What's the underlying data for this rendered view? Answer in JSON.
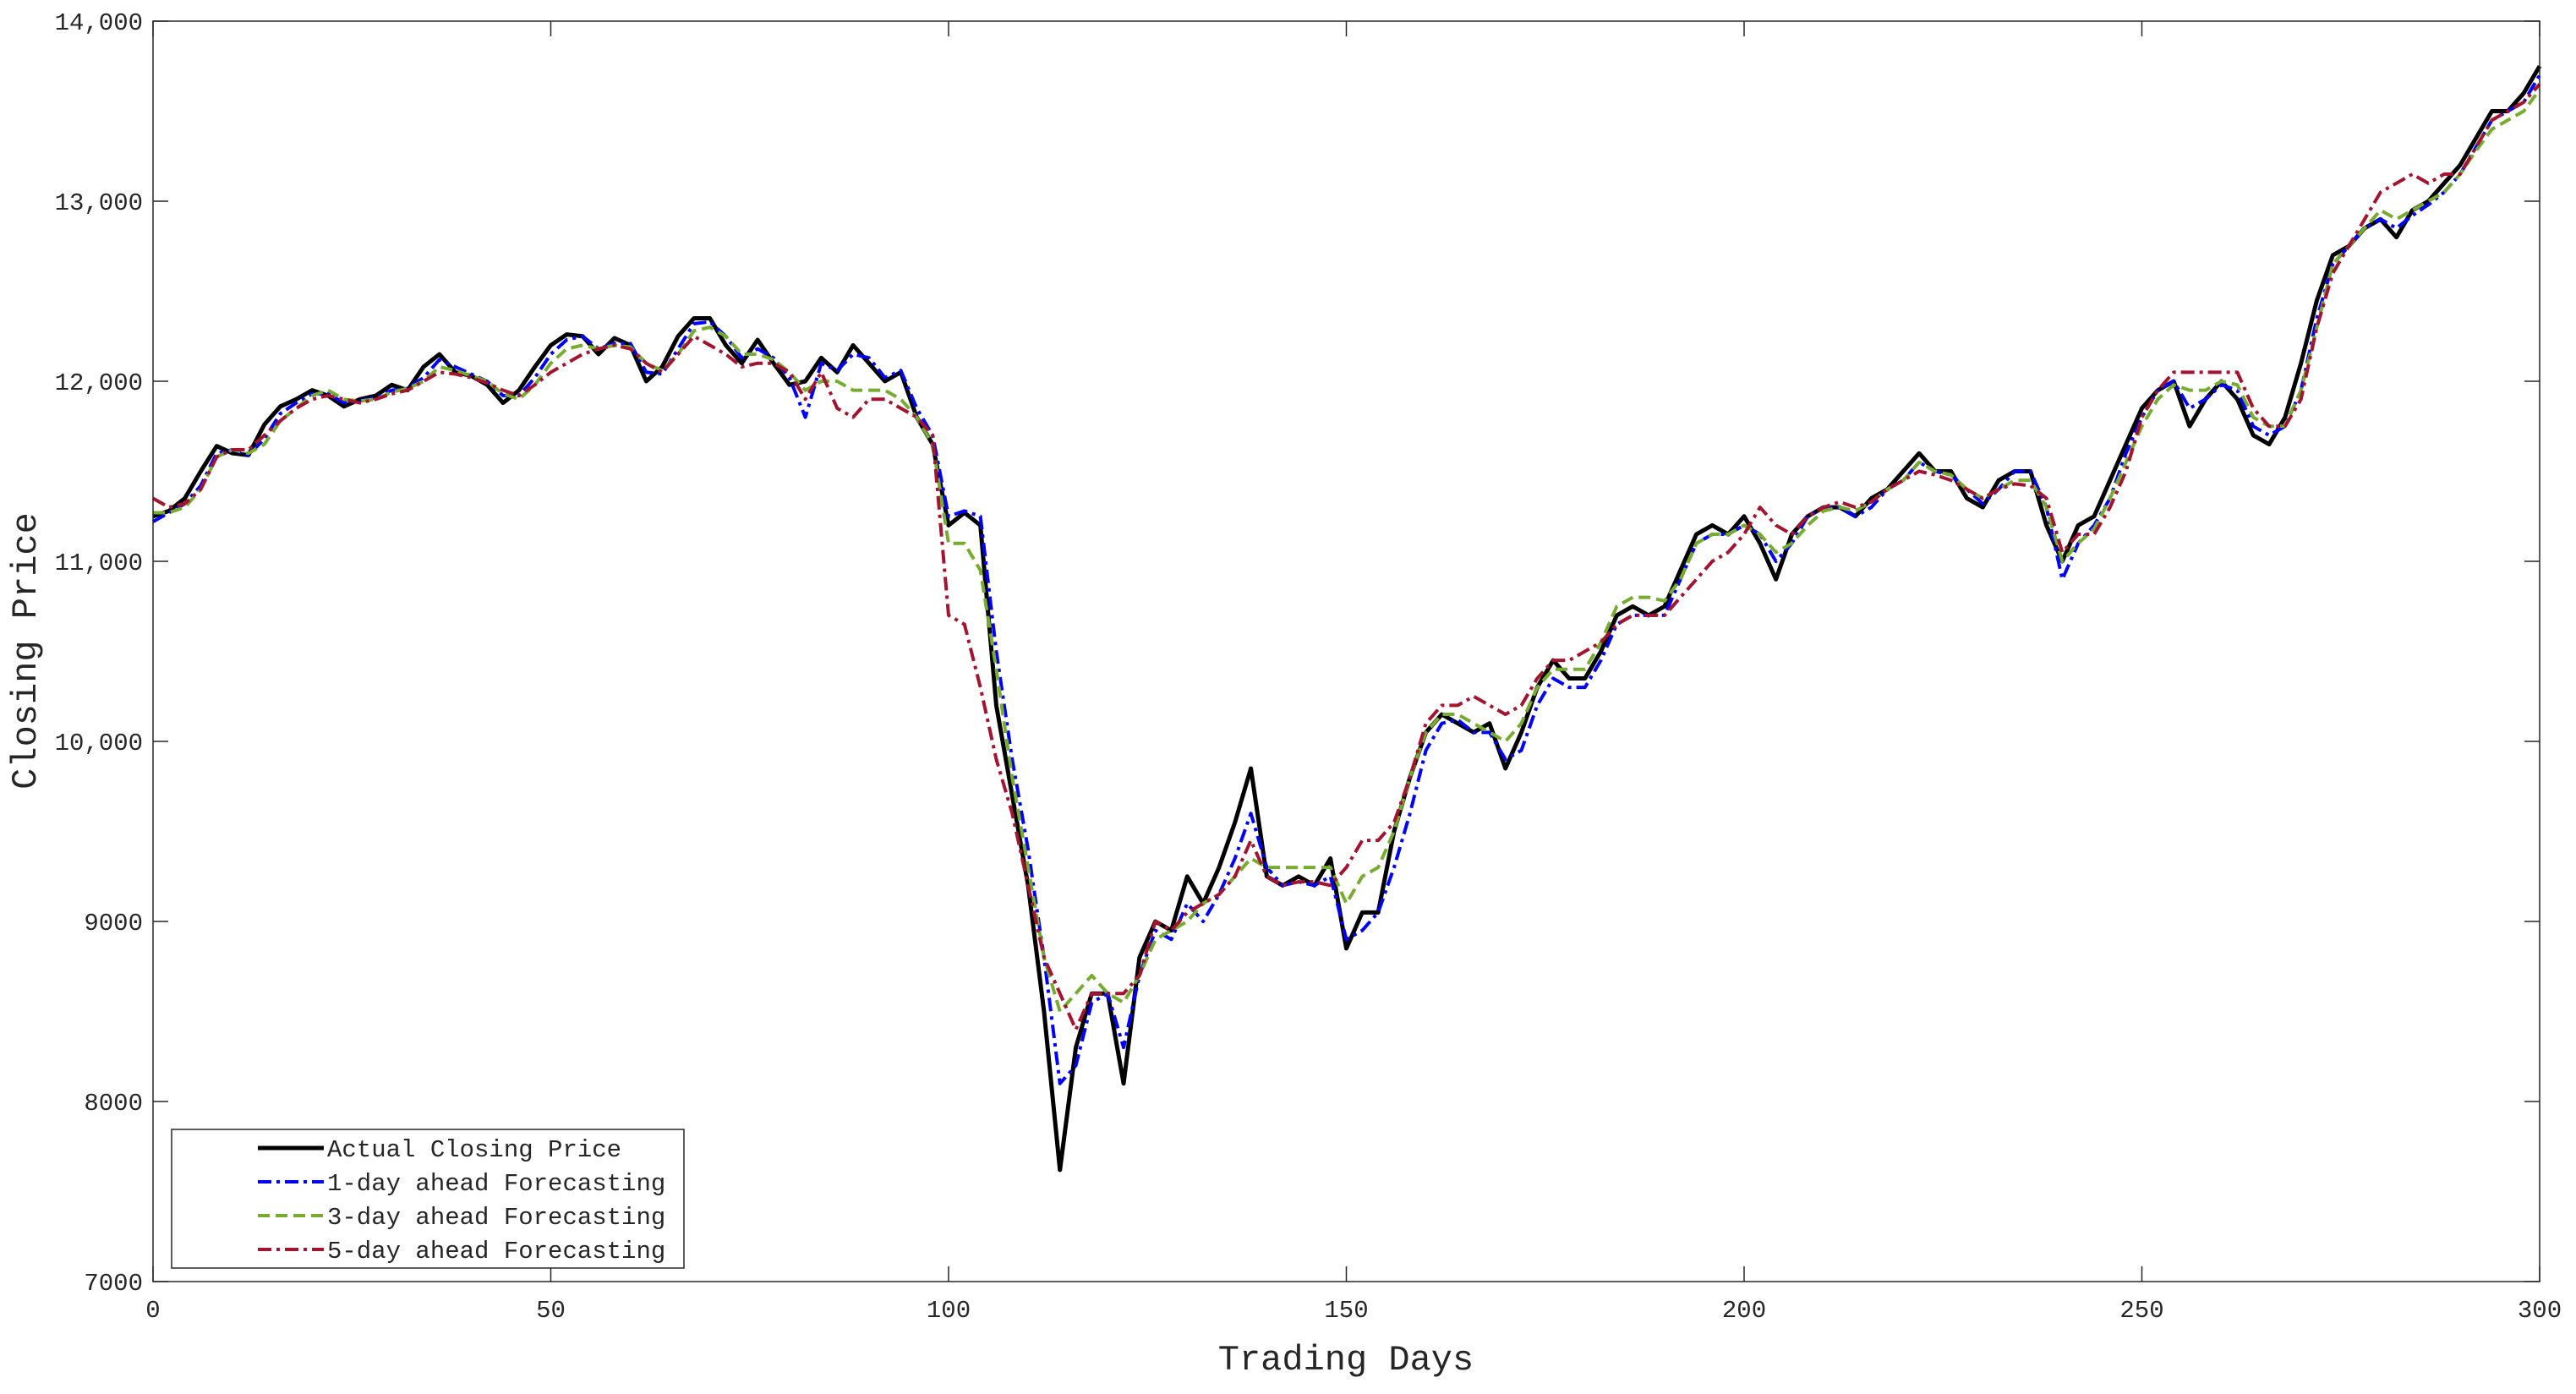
{
  "chart_data": {
    "type": "line",
    "xlabel": "Trading Days",
    "ylabel": "Closing Price",
    "xlim": [
      0,
      300
    ],
    "ylim": [
      7000,
      14000
    ],
    "xticks": [
      0,
      50,
      100,
      150,
      200,
      250,
      300
    ],
    "yticks": [
      7000,
      8000,
      9000,
      {
        "value": 10000,
        "label": "10,000"
      },
      {
        "value": 11000,
        "label": "11,000"
      },
      {
        "value": 12000,
        "label": "12,000"
      },
      {
        "value": 13000,
        "label": "13,000"
      },
      {
        "value": 14000,
        "label": "14,000"
      }
    ],
    "grid": false,
    "legend": "lower left",
    "x": [
      0,
      2,
      4,
      6,
      8,
      10,
      12,
      14,
      16,
      18,
      20,
      22,
      24,
      26,
      28,
      30,
      32,
      34,
      36,
      38,
      40,
      42,
      44,
      46,
      48,
      50,
      52,
      54,
      56,
      58,
      60,
      62,
      64,
      66,
      68,
      70,
      72,
      74,
      76,
      78,
      80,
      82,
      84,
      86,
      88,
      90,
      92,
      94,
      96,
      98,
      100,
      102,
      104,
      106,
      108,
      110,
      112,
      114,
      116,
      118,
      120,
      122,
      124,
      126,
      128,
      130,
      132,
      134,
      136,
      138,
      140,
      142,
      144,
      146,
      148,
      150,
      152,
      154,
      156,
      158,
      160,
      162,
      164,
      166,
      168,
      170,
      172,
      174,
      176,
      178,
      180,
      182,
      184,
      186,
      188,
      190,
      192,
      194,
      196,
      198,
      200,
      202,
      204,
      206,
      208,
      210,
      212,
      214,
      216,
      218,
      220,
      222,
      224,
      226,
      228,
      230,
      232,
      234,
      236,
      238,
      240,
      242,
      244,
      246,
      248,
      250,
      252,
      254,
      256,
      258,
      260,
      262,
      264,
      266,
      268,
      270,
      272,
      274,
      276,
      278,
      280,
      282,
      284,
      286,
      288,
      290,
      292,
      294,
      296,
      298,
      300
    ],
    "series": [
      {
        "name": "Actual Closing Price",
        "color": "#000000",
        "style": "solid",
        "values": [
          11250,
          11280,
          11350,
          11500,
          11640,
          11600,
          11590,
          11760,
          11860,
          11900,
          11950,
          11920,
          11860,
          11900,
          11920,
          11980,
          11950,
          12080,
          12150,
          12050,
          12030,
          11980,
          11880,
          11950,
          12080,
          12200,
          12260,
          12250,
          12150,
          12240,
          12200,
          12000,
          12080,
          12250,
          12350,
          12350,
          12200,
          12100,
          12230,
          12100,
          11980,
          12000,
          12130,
          12050,
          12200,
          12100,
          12000,
          12050,
          11800,
          11650,
          11200,
          11270,
          11200,
          10200,
          9700,
          9200,
          8500,
          7620,
          8300,
          8600,
          8600,
          8100,
          8800,
          9000,
          8950,
          9250,
          9100,
          9300,
          9550,
          9850,
          9250,
          9200,
          9250,
          9200,
          9350,
          8850,
          9050,
          9050,
          9500,
          9800,
          10050,
          10150,
          10100,
          10050,
          10100,
          9850,
          10050,
          10300,
          10450,
          10350,
          10350,
          10500,
          10700,
          10750,
          10700,
          10750,
          10950,
          11150,
          11200,
          11150,
          11250,
          11100,
          10900,
          11150,
          11250,
          11300,
          11300,
          11250,
          11350,
          11400,
          11500,
          11600,
          11500,
          11500,
          11350,
          11300,
          11450,
          11500,
          11500,
          11200,
          11000,
          11200,
          11250,
          11450,
          11650,
          11850,
          11950,
          12000,
          11750,
          11900,
          12000,
          11900,
          11700,
          11650,
          11800,
          12100,
          12450,
          12700,
          12750,
          12850,
          12900,
          12800,
          12950,
          13000,
          13100,
          13200,
          13350,
          13500,
          13500,
          13600,
          13750
        ]
      },
      {
        "name": "1-day ahead Forecasting",
        "color": "#0000ff",
        "style": "dashdot",
        "values": [
          11220,
          11270,
          11320,
          11420,
          11600,
          11620,
          11590,
          11680,
          11820,
          11880,
          11930,
          11930,
          11880,
          11890,
          11910,
          11950,
          11960,
          12020,
          12120,
          12080,
          12040,
          12000,
          11920,
          11920,
          12020,
          12150,
          12230,
          12250,
          12180,
          12210,
          12210,
          12050,
          12040,
          12180,
          12320,
          12330,
          12250,
          12130,
          12180,
          12130,
          12020,
          11800,
          12100,
          12060,
          12150,
          12130,
          12020,
          12060,
          11850,
          11700,
          11250,
          11280,
          11250,
          10500,
          9900,
          9400,
          8800,
          8100,
          8200,
          8550,
          8600,
          8300,
          8700,
          8950,
          8900,
          9100,
          9000,
          9150,
          9350,
          9600,
          9300,
          9200,
          9220,
          9200,
          9250,
          8900,
          8950,
          9050,
          9300,
          9600,
          9950,
          10100,
          10120,
          10050,
          10050,
          9900,
          9950,
          10200,
          10350,
          10300,
          10300,
          10450,
          10650,
          10700,
          10700,
          10700,
          10900,
          11100,
          11150,
          11150,
          11200,
          11150,
          11000,
          11100,
          11250,
          11300,
          11300,
          11250,
          11300,
          11400,
          11450,
          11550,
          11500,
          11480,
          11400,
          11320,
          11400,
          11500,
          11500,
          11300,
          10900,
          11100,
          11200,
          11350,
          11600,
          11800,
          11950,
          12000,
          11850,
          11900,
          11980,
          11950,
          11750,
          11700,
          11750,
          11950,
          12350,
          12650,
          12750,
          12850,
          12900,
          12850,
          12920,
          12980,
          13050,
          13150,
          13300,
          13450,
          13500,
          13550,
          13700
        ]
      },
      {
        "name": "3-day ahead Forecasting",
        "color": "#77ac30",
        "style": "dashed",
        "values": [
          11270,
          11270,
          11300,
          11400,
          11580,
          11620,
          11600,
          11650,
          11780,
          11850,
          11920,
          11950,
          11900,
          11890,
          11900,
          11940,
          11960,
          12000,
          12080,
          12060,
          12030,
          12000,
          11930,
          11900,
          11980,
          12100,
          12180,
          12200,
          12180,
          12200,
          12190,
          12100,
          12060,
          12150,
          12280,
          12300,
          12250,
          12150,
          12150,
          12120,
          12050,
          11950,
          12000,
          12000,
          11950,
          11950,
          11950,
          11900,
          11800,
          11650,
          11100,
          11100,
          10950,
          10400,
          9800,
          9300,
          8800,
          8500,
          8600,
          8700,
          8600,
          8550,
          8700,
          8900,
          8950,
          9000,
          9100,
          9150,
          9250,
          9350,
          9300,
          9300,
          9300,
          9300,
          9300,
          9100,
          9250,
          9300,
          9500,
          9800,
          10050,
          10150,
          10150,
          10100,
          10050,
          10000,
          10100,
          10300,
          10400,
          10400,
          10400,
          10550,
          10750,
          10800,
          10800,
          10780,
          10900,
          11100,
          11150,
          11150,
          11200,
          11150,
          11050,
          11100,
          11200,
          11280,
          11300,
          11280,
          11330,
          11400,
          11450,
          11550,
          11500,
          11480,
          11400,
          11350,
          11400,
          11450,
          11450,
          11300,
          11000,
          11100,
          11180,
          11350,
          11550,
          11750,
          11900,
          11980,
          11950,
          11950,
          12000,
          11980,
          11800,
          11750,
          11750,
          11950,
          12300,
          12650,
          12750,
          12850,
          12950,
          12900,
          12950,
          13000,
          13050,
          13150,
          13280,
          13400,
          13450,
          13500,
          13620
        ]
      },
      {
        "name": "5-day ahead Forecasting",
        "color": "#a2142f",
        "style": "dashdot",
        "values": [
          11350,
          11300,
          11320,
          11400,
          11580,
          11620,
          11620,
          11700,
          11780,
          11850,
          11900,
          11920,
          11900,
          11880,
          11900,
          11930,
          11950,
          12000,
          12050,
          12040,
          12020,
          11990,
          11950,
          11920,
          11980,
          12050,
          12100,
          12150,
          12180,
          12200,
          12180,
          12100,
          12050,
          12150,
          12250,
          12200,
          12150,
          12080,
          12100,
          12100,
          12050,
          11900,
          12050,
          11850,
          11800,
          11900,
          11900,
          11850,
          11800,
          11700,
          10700,
          10650,
          10300,
          9900,
          9600,
          9200,
          8800,
          8600,
          8400,
          8600,
          8600,
          8600,
          8700,
          9000,
          8950,
          9050,
          9100,
          9150,
          9250,
          9450,
          9250,
          9200,
          9220,
          9220,
          9200,
          9300,
          9450,
          9450,
          9550,
          9800,
          10100,
          10200,
          10200,
          10250,
          10200,
          10150,
          10200,
          10350,
          10450,
          10450,
          10500,
          10550,
          10650,
          10700,
          10700,
          10700,
          10800,
          10900,
          11000,
          11050,
          11150,
          11300,
          11200,
          11150,
          11250,
          11300,
          11330,
          11300,
          11330,
          11400,
          11450,
          11500,
          11480,
          11450,
          11400,
          11350,
          11400,
          11430,
          11420,
          11350,
          11050,
          11150,
          11150,
          11300,
          11500,
          11800,
          11950,
          12050,
          12050,
          12050,
          12050,
          12050,
          11850,
          11750,
          11750,
          11900,
          12300,
          12600,
          12750,
          12900,
          13050,
          13100,
          13150,
          13100,
          13150,
          13150,
          13300,
          13450,
          13500,
          13550,
          13650
        ]
      }
    ]
  }
}
